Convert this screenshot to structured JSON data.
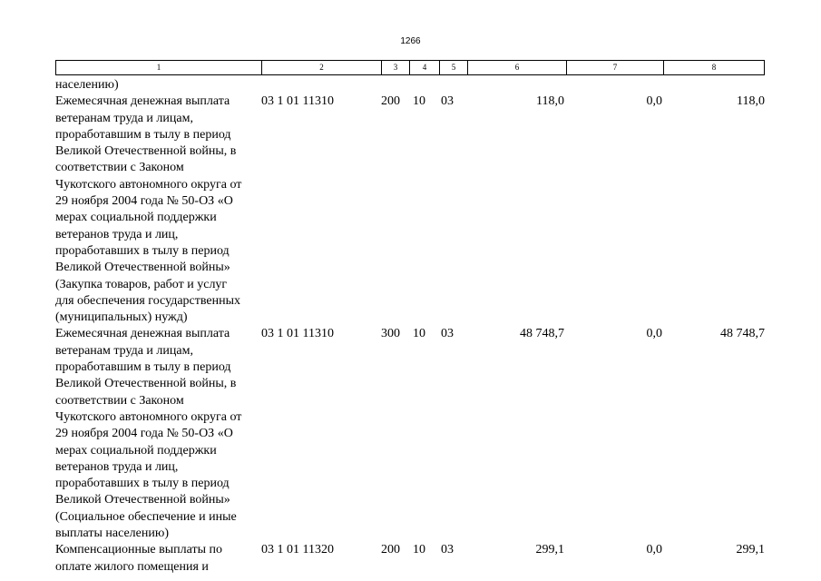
{
  "page_number": "1266",
  "column_headers": [
    "1",
    "2",
    "3",
    "4",
    "5",
    "6",
    "7",
    "8"
  ],
  "carry_over_text": "населению)",
  "rows": [
    {
      "description": "Ежемесячная денежная выплата\nветеранам труда и лицам,\nпроработавшим в тылу в период\nВеликой Отечественной войны, в\nсоответствии с Законом\nЧукотского автономного округа от\n29 ноября 2004 года № 50-ОЗ «О\nмерах социальной поддержки\nветеранов труда и лиц,\nпроработавших в тылу в период\nВеликой Отечественной войны»\n(Закупка товаров, работ и услуг\nдля обеспечения государственных\n(муниципальных) нужд)",
      "code": "03 1 01 11310",
      "vr": "200",
      "rz": "10",
      "pr": "03",
      "col6": "118,0",
      "col7": "0,0",
      "col8": "118,0"
    },
    {
      "description": "Ежемесячная денежная выплата\nветеранам труда и лицам,\nпроработавшим в тылу в период\nВеликой Отечественной войны, в\nсоответствии с Законом\nЧукотского автономного округа от\n29 ноября 2004 года № 50-ОЗ «О\nмерах социальной поддержки\nветеранов труда и лиц,\nпроработавших в тылу в период\nВеликой Отечественной войны»\n(Социальное обеспечение и иные\nвыплаты населению)",
      "code": "03 1 01 11310",
      "vr": "300",
      "rz": "10",
      "pr": "03",
      "col6": "48 748,7",
      "col7": "0,0",
      "col8": "48 748,7"
    },
    {
      "description": "Компенсационные выплаты по\nоплате жилого помещения и",
      "code": "03 1 01 11320",
      "vr": "200",
      "rz": "10",
      "pr": "03",
      "col6": "299,1",
      "col7": "0,0",
      "col8": "299,1"
    }
  ]
}
